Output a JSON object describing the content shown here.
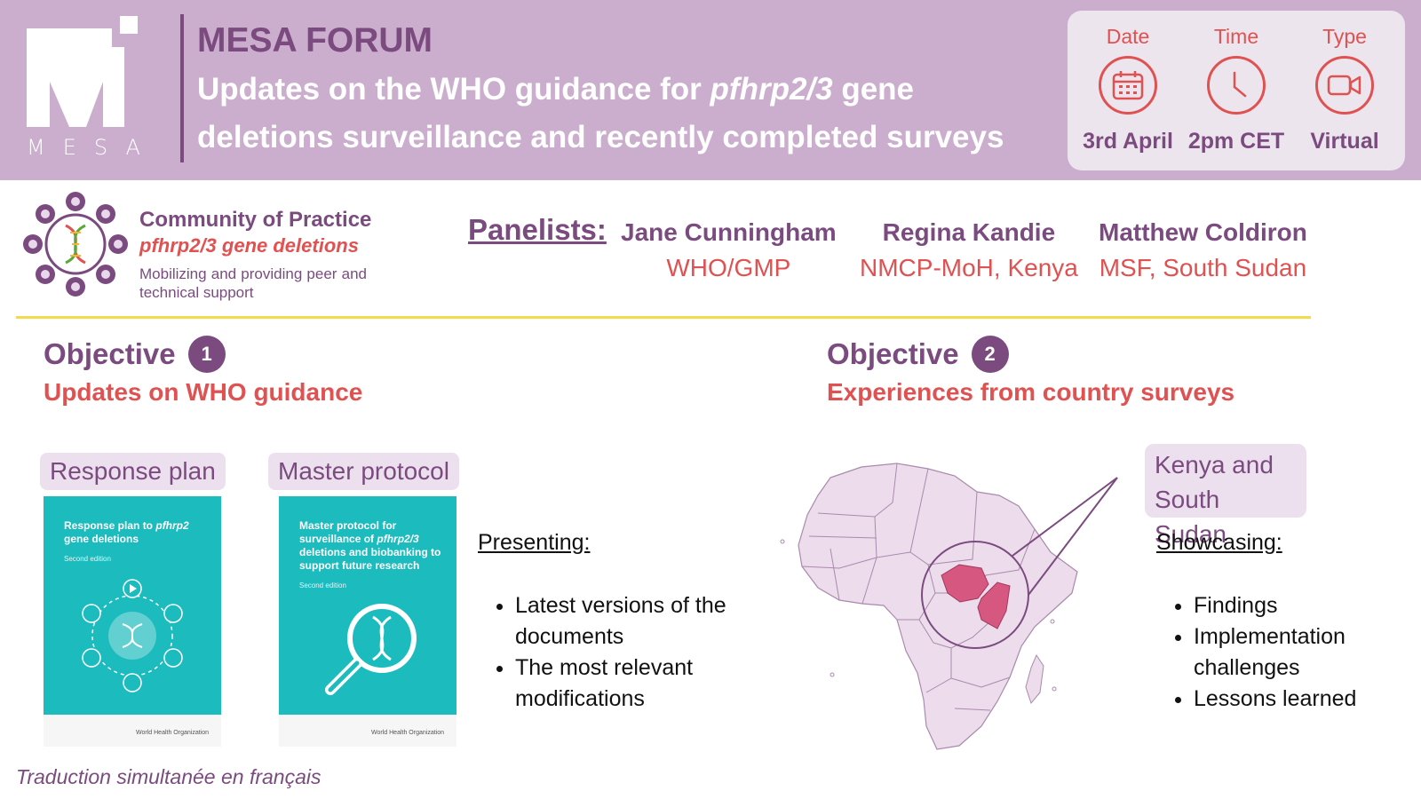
{
  "header": {
    "logo_word": "MESA",
    "forum_title": "MESA FORUM",
    "event_title_part1": "Updates on the WHO guidance for ",
    "event_title_italic": "pfhrp2/3",
    "event_title_part2": " gene deletions surveillance and recently completed surveys"
  },
  "info": [
    {
      "label": "Date",
      "value": "3rd April",
      "icon": "calendar-icon"
    },
    {
      "label": "Time",
      "value": "2pm CET",
      "icon": "clock-icon"
    },
    {
      "label": "Type",
      "value": "Virtual",
      "icon": "video-camera-icon"
    }
  ],
  "community": {
    "title": "Community of Practice",
    "subtitle": "pfhrp2/3 gene deletions",
    "description": "Mobilizing and providing peer and technical support"
  },
  "panelists": {
    "label": "Panelists:",
    "people": [
      {
        "name": "Jane Cunningham",
        "org": "WHO/GMP"
      },
      {
        "name": "Regina Kandie",
        "org": "NMCP-MoH, Kenya"
      },
      {
        "name": "Matthew Coldiron",
        "org": "MSF, South Sudan"
      }
    ]
  },
  "objective1": {
    "word": "Objective",
    "number": "1",
    "subtitle": "Updates on WHO guidance",
    "documents": [
      {
        "tag": "Response plan",
        "cover_title_part1": "Response plan to ",
        "cover_title_italic": "pfhrp2",
        "cover_title_part2": " gene deletions",
        "edition": "Second edition",
        "publisher": "World Health Organization"
      },
      {
        "tag": "Master protocol",
        "cover_title_part1": "Master protocol for surveillance of ",
        "cover_title_italic": "pfhrp2/3",
        "cover_title_part2": " deletions and biobanking to support future research",
        "edition": "Second edition",
        "publisher": "World Health Organization"
      }
    ],
    "list_label": "Presenting:",
    "list": [
      "Latest versions of the documents",
      "The most relevant modifications"
    ]
  },
  "objective2": {
    "word": "Objective",
    "number": "2",
    "subtitle": "Experiences from country surveys",
    "countries_tag": "Kenya and South Sudan",
    "list_label": "Showcasing:",
    "list": [
      "Findings",
      "Implementation challenges",
      "Lessons learned"
    ]
  },
  "footer": "Traduction simultanée en français",
  "colors": {
    "header_bg": "#cbaecd",
    "purple": "#7b4b80",
    "coral": "#e05252",
    "teal": "#1bbbbe",
    "yellow": "#f2dc4c",
    "map_fill": "#ecdcec",
    "highlight": "#d6577f"
  }
}
